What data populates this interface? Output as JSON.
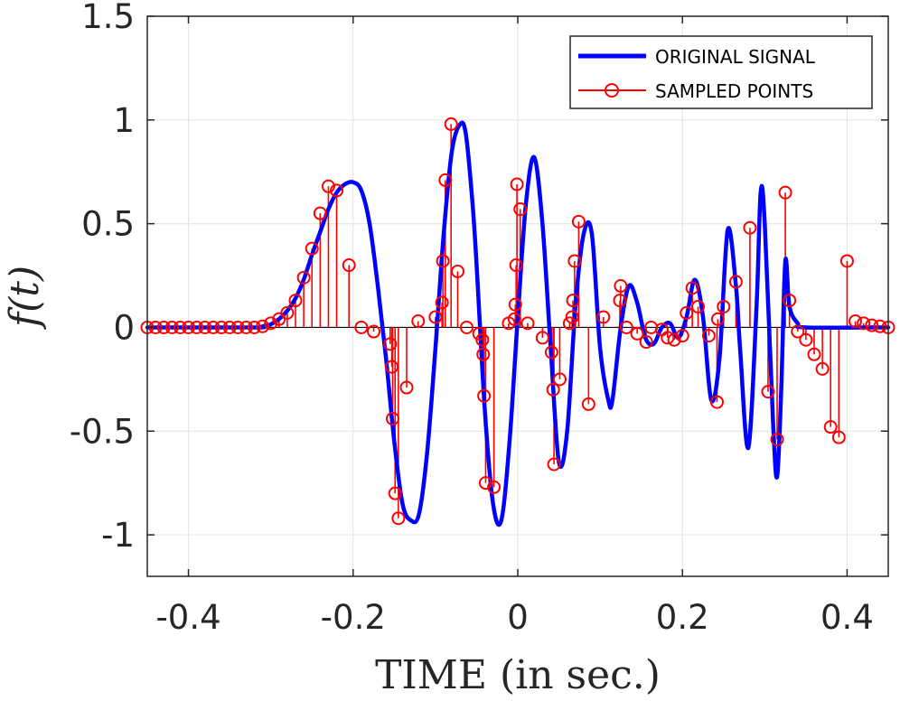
{
  "chart_data": {
    "type": "line",
    "xlabel": "TIME (in sec.)",
    "ylabel": "f(t)",
    "xlim": [
      -0.45,
      0.45
    ],
    "ylim": [
      -1.2,
      1.5
    ],
    "grid": true,
    "legend_position": "top-right",
    "x_ticks": [
      -0.4,
      -0.2,
      0,
      0.2,
      0.4
    ],
    "x_tick_labels": [
      "-0.4",
      "-0.2",
      "0",
      "0.2",
      "0.4"
    ],
    "y_ticks": [
      -1,
      -0.5,
      0,
      0.5,
      1,
      1.5
    ],
    "y_tick_labels": [
      "-1",
      "-0.5",
      "0",
      "0.5",
      "1",
      "1.5"
    ],
    "series": [
      {
        "name": "ORIGINAL SIGNAL",
        "color": "#0000ff",
        "style": "line",
        "x": [
          -0.45,
          -0.32,
          -0.31,
          -0.3,
          -0.29,
          -0.28,
          -0.27,
          -0.26,
          -0.25,
          -0.24,
          -0.23,
          -0.22,
          -0.21,
          -0.2,
          -0.19,
          -0.18,
          -0.17,
          -0.16,
          -0.15,
          -0.14,
          -0.13,
          -0.12,
          -0.11,
          -0.1,
          -0.09,
          -0.08,
          -0.07,
          -0.063,
          -0.055,
          -0.05,
          -0.04,
          -0.03,
          -0.02,
          -0.01,
          0.0,
          0.01,
          0.02,
          0.03,
          0.04,
          0.05,
          0.06,
          0.07,
          0.08,
          0.09,
          0.1,
          0.11,
          0.115,
          0.125,
          0.135,
          0.145,
          0.155,
          0.165,
          0.175,
          0.185,
          0.195,
          0.205,
          0.215,
          0.225,
          0.235,
          0.245,
          0.255,
          0.265,
          0.27,
          0.28,
          0.29,
          0.295,
          0.3,
          0.31,
          0.315,
          0.32,
          0.325,
          0.33,
          0.34,
          0.35,
          0.45
        ],
        "y": [
          0.0,
          0.0,
          0.005,
          0.015,
          0.04,
          0.08,
          0.14,
          0.23,
          0.35,
          0.46,
          0.57,
          0.65,
          0.69,
          0.7,
          0.66,
          0.5,
          0.2,
          -0.15,
          -0.55,
          -0.85,
          -0.93,
          -0.9,
          -0.6,
          -0.1,
          0.45,
          0.85,
          0.98,
          0.93,
          0.6,
          0.3,
          -0.4,
          -0.85,
          -0.93,
          -0.55,
          0.05,
          0.6,
          0.82,
          0.5,
          -0.1,
          -0.65,
          -0.5,
          0.1,
          0.45,
          0.45,
          -0.1,
          -0.35,
          -0.35,
          0.0,
          0.2,
          0.12,
          -0.05,
          -0.08,
          0.0,
          0.02,
          -0.05,
          0.05,
          0.23,
          0.05,
          -0.35,
          -0.15,
          0.47,
          0.2,
          -0.1,
          -0.58,
          0.1,
          0.65,
          0.5,
          -0.45,
          -0.72,
          -0.3,
          0.32,
          0.1,
          0.02,
          0.0,
          0.0
        ]
      },
      {
        "name": "SAMPLED POINTS",
        "color": "#ff0000",
        "style": "stem",
        "x": [
          -0.45,
          -0.44,
          -0.43,
          -0.42,
          -0.41,
          -0.4,
          -0.39,
          -0.38,
          -0.37,
          -0.36,
          -0.35,
          -0.34,
          -0.33,
          -0.32,
          -0.31,
          -0.3,
          -0.29,
          -0.28,
          -0.27,
          -0.26,
          -0.25,
          -0.24,
          -0.23,
          -0.22,
          -0.205,
          -0.19,
          -0.175,
          -0.155,
          -0.153,
          -0.152,
          -0.149,
          -0.145,
          -0.135,
          -0.121,
          -0.1,
          -0.092,
          -0.091,
          -0.088,
          -0.081,
          -0.073,
          -0.062,
          -0.047,
          -0.043,
          -0.042,
          -0.041,
          -0.039,
          -0.029,
          -0.011,
          -0.004,
          -0.003,
          -0.002,
          -0.001,
          0.003,
          0.012,
          0.03,
          0.041,
          0.043,
          0.044,
          0.051,
          0.063,
          0.066,
          0.067,
          0.069,
          0.074,
          0.086,
          0.104,
          0.124,
          0.125,
          0.132,
          0.145,
          0.156,
          0.162,
          0.175,
          0.182,
          0.19,
          0.2,
          0.205,
          0.212,
          0.219,
          0.232,
          0.242,
          0.243,
          0.25,
          0.265,
          0.282,
          0.304,
          0.315,
          0.325,
          0.33,
          0.34,
          0.35,
          0.36,
          0.37,
          0.38,
          0.39,
          0.4,
          0.41,
          0.42,
          0.43,
          0.44,
          0.45
        ],
        "y": [
          0.0,
          0.0,
          0.0,
          0.0,
          0.0,
          0.0,
          0.0,
          0.0,
          0.0,
          0.0,
          0.0,
          0.0,
          0.0,
          0.0,
          0.005,
          0.02,
          0.04,
          0.07,
          0.13,
          0.24,
          0.38,
          0.55,
          0.68,
          0.66,
          0.3,
          0.0,
          -0.02,
          -0.08,
          -0.19,
          -0.44,
          -0.8,
          -0.92,
          -0.29,
          0.03,
          0.05,
          0.12,
          0.32,
          0.71,
          0.98,
          0.27,
          0.0,
          -0.03,
          -0.06,
          -0.13,
          -0.33,
          -0.75,
          -0.77,
          0.02,
          0.04,
          0.11,
          0.3,
          0.69,
          0.57,
          0.02,
          -0.05,
          -0.12,
          -0.3,
          -0.66,
          -0.25,
          0.02,
          0.05,
          0.13,
          0.32,
          0.51,
          -0.37,
          0.05,
          0.13,
          0.2,
          0.0,
          -0.03,
          -0.07,
          0.0,
          -0.01,
          -0.05,
          -0.06,
          -0.04,
          0.07,
          0.19,
          0.1,
          -0.04,
          -0.36,
          0.04,
          0.1,
          0.22,
          0.48,
          -0.31,
          -0.54,
          0.65,
          0.13,
          -0.02,
          -0.06,
          -0.13,
          -0.2,
          -0.48,
          -0.53,
          0.32,
          0.03,
          0.02,
          0.01,
          0.005,
          0.0
        ]
      }
    ]
  }
}
